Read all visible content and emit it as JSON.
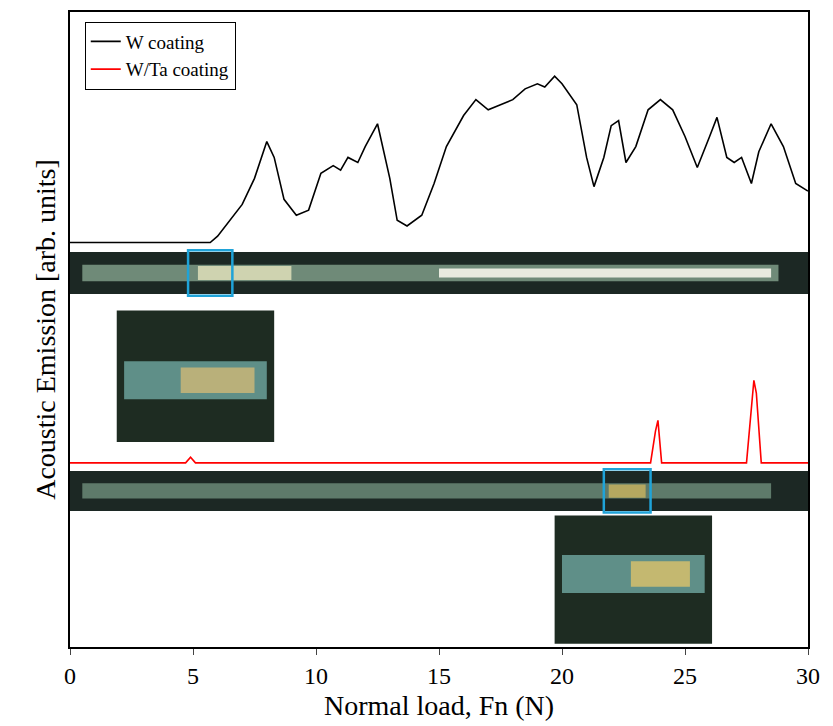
{
  "chart_data": {
    "type": "line",
    "x_label": "Normal load, Fn (N)",
    "y_label": "Acoustic Emission [arb. units]",
    "xlim": [
      0,
      30
    ],
    "xticks": [
      0,
      5,
      10,
      15,
      20,
      25,
      30
    ],
    "ylim": [
      0,
      100
    ],
    "tick_labels": "x",
    "grid": false,
    "legend": "upper left",
    "series": [
      {
        "name": "W coating",
        "color": "#000000",
        "line_style": "solid",
        "x": [
          0,
          5.7,
          6,
          6.5,
          7,
          7.5,
          8,
          8.3,
          8.7,
          9.2,
          9.7,
          10.2,
          10.7,
          11,
          11.3,
          11.7,
          12,
          12.5,
          13,
          13.3,
          13.7,
          14.3,
          14.8,
          15.3,
          16,
          16.5,
          17,
          17.5,
          18,
          18.5,
          19,
          19.3,
          19.7,
          20,
          20.3,
          20.6,
          21,
          21.3,
          21.7,
          22,
          22.3,
          22.6,
          23,
          23.5,
          24,
          24.5,
          25,
          25.5,
          26,
          26.3,
          26.7,
          27,
          27.3,
          27.7,
          28,
          28.5,
          29,
          29.5,
          30
        ],
        "values": [
          63.7,
          63.7,
          64.7,
          67.2,
          69.7,
          73.8,
          79.6,
          77.1,
          70.5,
          68,
          68.8,
          74.6,
          75.8,
          75.1,
          77.1,
          76.3,
          78.8,
          82.4,
          73.8,
          67.2,
          66.3,
          68,
          73,
          78.8,
          83.7,
          86.2,
          84.6,
          85.4,
          86.2,
          87.9,
          88.7,
          88.2,
          89.9,
          88.7,
          87.1,
          85.4,
          77.1,
          72.5,
          77.1,
          82.1,
          82.9,
          76.3,
          78.8,
          84.6,
          86.2,
          84.6,
          80.4,
          75.5,
          80.4,
          83.4,
          77.1,
          76.3,
          77.1,
          73,
          78,
          82.4,
          78.8,
          73,
          71.8
        ]
      },
      {
        "name": "W/Ta coating",
        "color": "#ff0000",
        "line_style": "solid",
        "x": [
          0,
          4.7,
          4.9,
          5.1,
          23.6,
          23.8,
          23.9,
          24.05,
          27.5,
          27.7,
          27.8,
          27.9,
          28.1,
          30
        ],
        "values": [
          29,
          29,
          29.9,
          29,
          29,
          34,
          35.7,
          29,
          29,
          38,
          42,
          40,
          29,
          29
        ]
      }
    ]
  }
}
